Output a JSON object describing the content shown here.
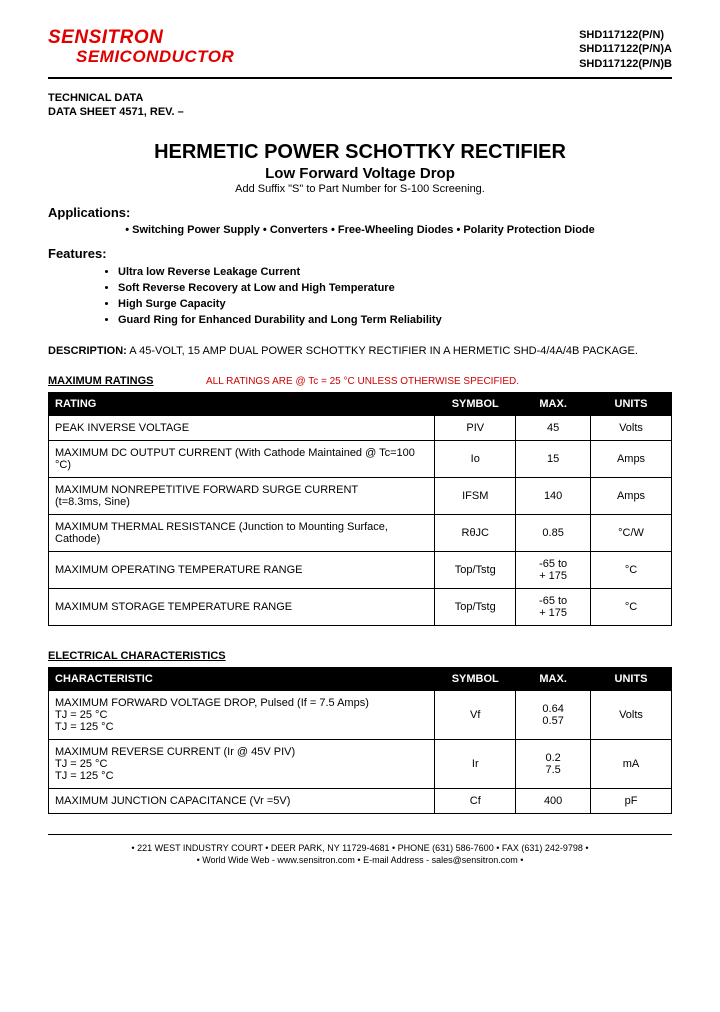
{
  "logo": {
    "line1": "SENSITRON",
    "line2": "SEMICONDUCTOR"
  },
  "part_numbers": [
    "SHD117122(P/N)",
    "SHD117122(P/N)A",
    "SHD117122(P/N)B"
  ],
  "tech_data": {
    "line1": "TECHNICAL DATA",
    "line2": "DATA SHEET 4571, REV. –"
  },
  "title": {
    "main": "HERMETIC POWER SCHOTTKY RECTIFIER",
    "sub": "Low Forward Voltage Drop",
    "note": "Add Suffix \"S\" to Part Number for S-100 Screening."
  },
  "applications": {
    "label": "Applications:",
    "line": "• Switching Power Supply • Converters • Free-Wheeling Diodes • Polarity Protection Diode"
  },
  "features": {
    "label": "Features:",
    "items": [
      "Ultra low Reverse Leakage Current",
      "Soft Reverse Recovery at Low and High Temperature",
      "High Surge Capacity",
      "Guard Ring for Enhanced Durability and Long Term Reliability"
    ]
  },
  "description": {
    "label": "DESCRIPTION:",
    "text": " A 45-VOLT, 15 AMP DUAL POWER SCHOTTKY RECTIFIER IN A HERMETIC SHD-4/4A/4B PACKAGE."
  },
  "ratings_table": {
    "title": "MAXIMUM RATINGS",
    "note": "ALL RATINGS ARE @ Tc = 25 °C UNLESS OTHERWISE SPECIFIED.",
    "columns": [
      "RATING",
      "SYMBOL",
      "MAX.",
      "UNITS"
    ],
    "rows": [
      [
        "PEAK INVERSE VOLTAGE",
        "PIV",
        "45",
        "Volts"
      ],
      [
        "MAXIMUM DC OUTPUT CURRENT (With Cathode Maintained @ Tc=100 °C)",
        "Io",
        "15",
        "Amps"
      ],
      [
        "MAXIMUM NONREPETITIVE FORWARD SURGE CURRENT\n(t=8.3ms, Sine)",
        "IFSM",
        "140",
        "Amps"
      ],
      [
        "MAXIMUM THERMAL RESISTANCE (Junction to Mounting Surface, Cathode)",
        "RθJC",
        "0.85",
        "°C/W"
      ],
      [
        "MAXIMUM OPERATING TEMPERATURE RANGE",
        "Top/Tstg",
        "-65 to\n+ 175",
        "°C"
      ],
      [
        "MAXIMUM STORAGE TEMPERATURE RANGE",
        "Top/Tstg",
        "-65 to\n+ 175",
        "°C"
      ]
    ]
  },
  "electrical_table": {
    "title": "ELECTRICAL CHARACTERISTICS",
    "columns": [
      "CHARACTERISTIC",
      "SYMBOL",
      "MAX.",
      "UNITS"
    ],
    "rows": [
      [
        "MAXIMUM FORWARD VOLTAGE DROP, Pulsed   (If = 7.5 Amps)\n                                                   TJ = 25 °C\n                                                   TJ = 125 °C",
        "Vf",
        "0.64\n0.57",
        "Volts"
      ],
      [
        "MAXIMUM REVERSE CURRENT   (Ir @ 45V PIV)\n                                                   TJ = 25 °C\n                                                   TJ = 125 °C",
        "Ir",
        "0.2\n7.5",
        "mA"
      ],
      [
        "MAXIMUM JUNCTION CAPACITANCE                                              (Vr =5V)",
        "Cf",
        "400",
        "pF"
      ]
    ]
  },
  "footer": {
    "line1": "• 221 WEST INDUSTRY COURT • DEER PARK, NY 11729-4681 • PHONE (631) 586-7600 • FAX (631) 242-9798 •",
    "line2": "• World Wide Web - www.sensitron.com • E-mail Address - sales@sensitron.com •"
  }
}
